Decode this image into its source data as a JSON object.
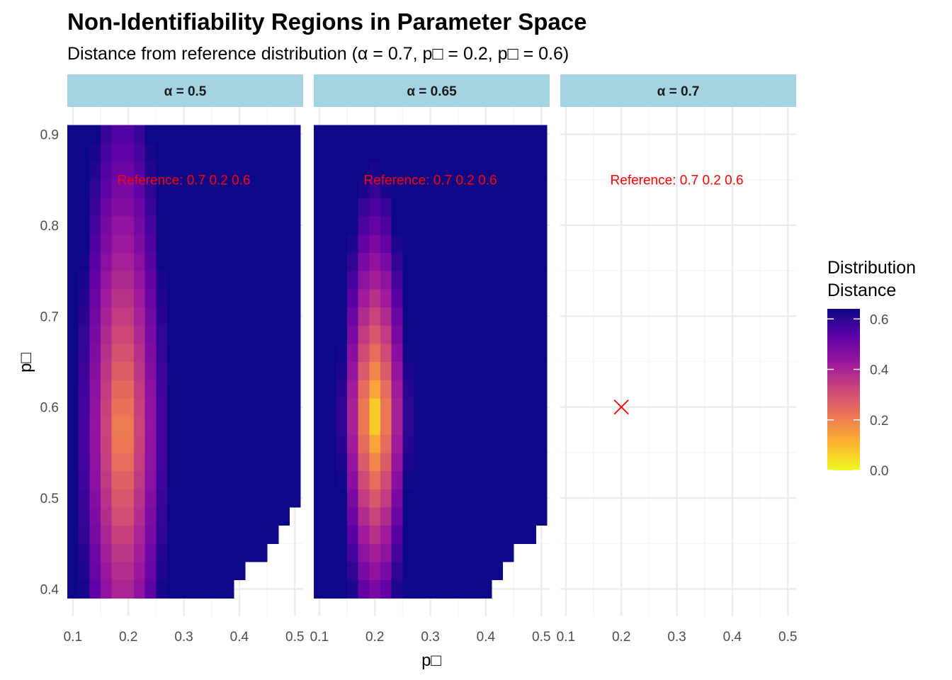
{
  "title": "Non-Identifiability Regions in Parameter Space",
  "subtitle": "Distance from reference distribution (α = 0.7, p□ = 0.2, p□ = 0.6)",
  "colors": {
    "strip_fill": "#a5d3e2",
    "grid_major": "#ebebeb",
    "grid_minor": "#f5f5f5",
    "reference": "#ff0000",
    "palette": [
      "#f0f921",
      "#fdb42f",
      "#ed7953",
      "#cc4778",
      "#9c179e",
      "#5c01a6",
      "#0d0887"
    ]
  },
  "chart_data": {
    "type": "heatmap",
    "title": "Non-Identifiability Regions in Parameter Space",
    "subtitle": "Distance from reference distribution (α = 0.7, p□ = 0.2, p□ = 0.6)",
    "xlabel": "p□",
    "ylabel": "p□",
    "x_ticks": [
      "0.1",
      "0.2",
      "0.3",
      "0.4",
      "0.5"
    ],
    "y_ticks": [
      "0.4",
      "0.5",
      "0.6",
      "0.7",
      "0.8",
      "0.9"
    ],
    "xlim": [
      0.09,
      0.515
    ],
    "ylim": [
      0.37,
      0.93
    ],
    "grid": true,
    "x_grid": [
      0.1,
      0.12,
      0.14,
      0.16,
      0.18,
      0.2,
      0.22,
      0.24,
      0.26,
      0.28,
      0.3,
      0.32,
      0.34,
      0.36,
      0.38,
      0.4,
      0.42,
      0.44,
      0.46,
      0.48,
      0.5
    ],
    "y_grid": [
      0.4,
      0.42,
      0.44,
      0.46,
      0.48,
      0.5,
      0.52,
      0.54,
      0.56,
      0.58,
      0.6,
      0.62,
      0.64,
      0.66,
      0.68,
      0.7,
      0.72,
      0.74,
      0.76,
      0.78,
      0.8,
      0.82,
      0.84,
      0.86,
      0.88,
      0.9
    ],
    "legend": {
      "title_lines": [
        "Distribution",
        "Distance"
      ],
      "position": "right",
      "min": 0,
      "max": 0.64,
      "ticks": [
        {
          "value": 0.0,
          "label": "0.0"
        },
        {
          "value": 0.2,
          "label": "0.2"
        },
        {
          "value": 0.4,
          "label": "0.4"
        },
        {
          "value": 0.6,
          "label": "0.6"
        }
      ]
    },
    "reference": {
      "alpha": 0.7,
      "p1": 0.2,
      "p2": 0.6
    },
    "panels": [
      {
        "strip": "α = 0.5",
        "annotation": "Reference: 0.7 0.2 0.6",
        "has_data": true,
        "center_x": 0.19,
        "center_y": 0.575,
        "sx": 0.085,
        "sy": 0.44,
        "offset": 0.15,
        "scale": 0.5,
        "y_exp": 1.6,
        "lower_bounds": [
          0.39,
          0.39,
          0.39,
          0.39,
          0.39,
          0.39,
          0.39,
          0.39,
          0.39,
          0.39,
          0.39,
          0.39,
          0.39,
          0.39,
          0.39,
          0.41,
          0.43,
          0.43,
          0.45,
          0.47,
          0.49,
          0.49
        ]
      },
      {
        "strip": "α = 0.65",
        "annotation": "Reference: 0.7 0.2 0.6",
        "has_data": true,
        "center_x": 0.2,
        "center_y": 0.59,
        "sx": 0.065,
        "sy": 0.28,
        "offset": 0.02,
        "scale": 0.62,
        "y_exp": 1.5,
        "lower_bounds": [
          0.39,
          0.39,
          0.39,
          0.39,
          0.39,
          0.39,
          0.39,
          0.39,
          0.39,
          0.39,
          0.39,
          0.39,
          0.39,
          0.39,
          0.39,
          0.39,
          0.41,
          0.43,
          0.45,
          0.45,
          0.47,
          0.49,
          0.51
        ]
      },
      {
        "strip": "α = 0.7",
        "annotation": "Reference: 0.7 0.2 0.6",
        "has_data": false,
        "marker": {
          "x": 0.2,
          "y": 0.6,
          "shape": "x"
        }
      }
    ]
  }
}
